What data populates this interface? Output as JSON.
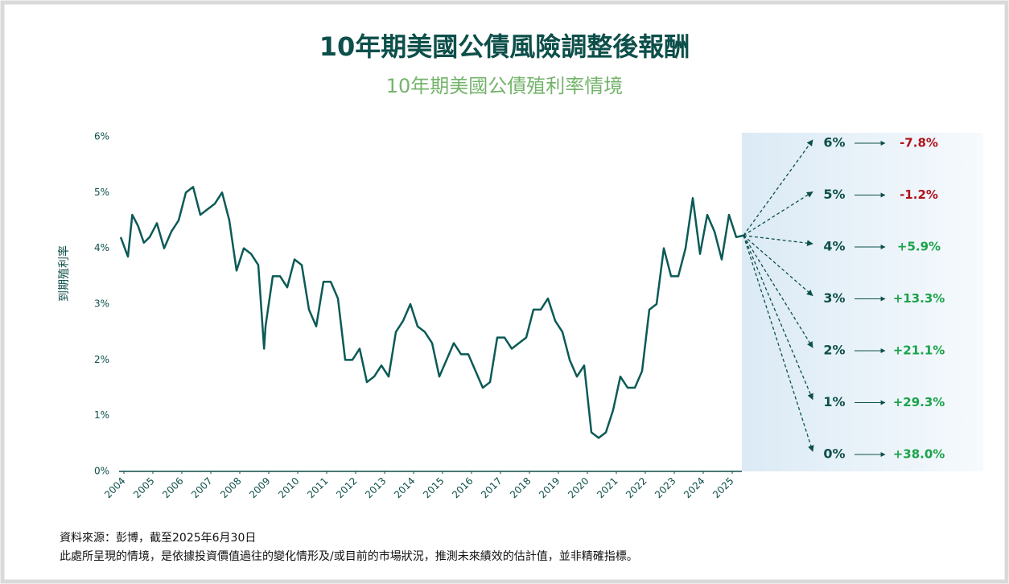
{
  "chart_data": {
    "type": "line",
    "title": "10年期美國公債風險調整後報酬",
    "subtitle": "10年期美國公債殖利率情境",
    "y_label": "到期殖利率",
    "x": [
      2004.0,
      2004.25,
      2004.4,
      2004.6,
      2004.8,
      2005.0,
      2005.25,
      2005.5,
      2005.75,
      2006.0,
      2006.25,
      2006.5,
      2006.75,
      2007.0,
      2007.25,
      2007.5,
      2007.75,
      2008.0,
      2008.25,
      2008.5,
      2008.75,
      2008.95,
      2009.0,
      2009.25,
      2009.5,
      2009.75,
      2010.0,
      2010.25,
      2010.5,
      2010.75,
      2011.0,
      2011.25,
      2011.5,
      2011.75,
      2012.0,
      2012.25,
      2012.5,
      2012.75,
      2013.0,
      2013.25,
      2013.5,
      2013.75,
      2014.0,
      2014.25,
      2014.5,
      2014.75,
      2015.0,
      2015.25,
      2015.5,
      2015.75,
      2016.0,
      2016.25,
      2016.5,
      2016.75,
      2017.0,
      2017.25,
      2017.5,
      2017.75,
      2018.0,
      2018.25,
      2018.5,
      2018.75,
      2019.0,
      2019.25,
      2019.5,
      2019.75,
      2020.0,
      2020.25,
      2020.5,
      2020.75,
      2021.0,
      2021.25,
      2021.5,
      2021.75,
      2022.0,
      2022.25,
      2022.5,
      2022.75,
      2023.0,
      2023.25,
      2023.5,
      2023.75,
      2024.0,
      2024.25,
      2024.5,
      2024.75,
      2025.0,
      2025.25,
      2025.5
    ],
    "series": [
      {
        "name": "10年期美國公債殖利率",
        "color": "#0b5a56",
        "values": [
          4.2,
          3.85,
          4.6,
          4.4,
          4.1,
          4.2,
          4.45,
          4.0,
          4.3,
          4.5,
          5.0,
          5.1,
          4.6,
          4.7,
          4.8,
          5.0,
          4.5,
          3.6,
          4.0,
          3.9,
          3.7,
          2.2,
          2.6,
          3.5,
          3.5,
          3.3,
          3.8,
          3.7,
          2.9,
          2.6,
          3.4,
          3.4,
          3.1,
          2.0,
          2.0,
          2.2,
          1.6,
          1.7,
          1.9,
          1.7,
          2.5,
          2.7,
          3.0,
          2.6,
          2.5,
          2.3,
          1.7,
          2.0,
          2.3,
          2.1,
          2.1,
          1.8,
          1.5,
          1.6,
          2.4,
          2.4,
          2.2,
          2.3,
          2.4,
          2.9,
          2.9,
          3.1,
          2.7,
          2.5,
          2.0,
          1.7,
          1.9,
          0.7,
          0.6,
          0.7,
          1.1,
          1.7,
          1.5,
          1.5,
          1.8,
          2.9,
          3.0,
          4.0,
          3.5,
          3.5,
          4.0,
          4.9,
          3.9,
          4.6,
          4.3,
          3.8,
          4.6,
          4.2,
          4.23
        ]
      }
    ],
    "xlim": [
      2004,
      2025.5
    ],
    "xticks": [
      2004,
      2005,
      2006,
      2007,
      2008,
      2009,
      2010,
      2011,
      2012,
      2013,
      2014,
      2015,
      2016,
      2017,
      2018,
      2019,
      2020,
      2021,
      2022,
      2023,
      2024,
      2025
    ],
    "ylim": [
      0,
      6
    ],
    "yticks": [
      {
        "value": 0,
        "label": "0%"
      },
      {
        "value": 1,
        "label": "1%"
      },
      {
        "value": 2,
        "label": "2%"
      },
      {
        "value": 3,
        "label": "3%"
      },
      {
        "value": 4,
        "label": "4%"
      },
      {
        "value": 5,
        "label": "5%"
      },
      {
        "value": 6,
        "label": "6%"
      }
    ],
    "scenarios": [
      {
        "yield": "6%",
        "return": "-7.8%",
        "color": "#b0101a"
      },
      {
        "yield": "5%",
        "return": "-1.2%",
        "color": "#b0101a"
      },
      {
        "yield": "4%",
        "return": "+5.9%",
        "color": "#1aa34a"
      },
      {
        "yield": "3%",
        "return": "+13.3%",
        "color": "#1aa34a"
      },
      {
        "yield": "2%",
        "return": "+21.1%",
        "color": "#1aa34a"
      },
      {
        "yield": "1%",
        "return": "+29.3%",
        "color": "#1aa34a"
      },
      {
        "yield": "0%",
        "return": "+38.0%",
        "color": "#1aa34a"
      }
    ],
    "notes": [
      "資料來源：彭博，截至2025年6月30日",
      "此處所呈現的情境，是依據投資價值過往的變化情形及/或目前的市場狀況，推測未來績效的估計值，並非精確指標。"
    ]
  }
}
